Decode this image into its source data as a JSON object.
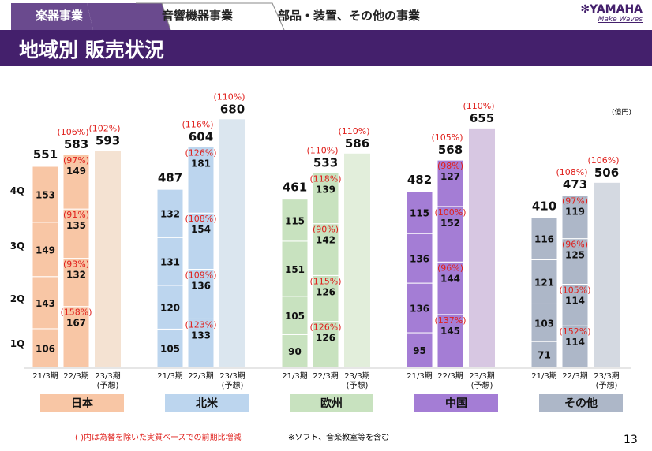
{
  "tabs": [
    {
      "label": "楽器事業",
      "active": true
    },
    {
      "label": "音響機器事業"
    },
    {
      "label": "部品・装置、その他の事業"
    }
  ],
  "logo": {
    "brand": "YAMAHA",
    "tagline": "Make Waves"
  },
  "title": "地域別 販売状況",
  "unit": "(億円)",
  "footnote_left": "( )内は為替を除いた実質ベースでの前期比増減",
  "footnote_right": "※ソフト、音楽教室等を含む",
  "page_number": "13",
  "chart_data": {
    "type": "bar",
    "title": "地域別 販売状況",
    "unit": "億円",
    "quarter_labels": [
      "1Q",
      "2Q",
      "3Q",
      "4Q"
    ],
    "period_labels": [
      "21/3期",
      "22/3期",
      "23/3期"
    ],
    "forecast_label": "(予想)",
    "regions": [
      {
        "name": "日本",
        "color": "#f8c6a5",
        "light": "#f4e2d2",
        "fy21": {
          "quarters": [
            106,
            143,
            149,
            153
          ],
          "total": 551
        },
        "fy22": {
          "quarters": [
            167,
            132,
            135,
            149
          ],
          "pcts": [
            "(158%)",
            "(93%)",
            "(91%)",
            "(97%)"
          ],
          "total": 583,
          "total_pct": "(106%)"
        },
        "fy23": {
          "total": 593,
          "total_pct": "(102%)"
        }
      },
      {
        "name": "北米",
        "color": "#bcd5ee",
        "light": "#dbe6ef",
        "fy21": {
          "quarters": [
            105,
            120,
            131,
            132
          ],
          "total": 487
        },
        "fy22": {
          "quarters": [
            133,
            136,
            154,
            181
          ],
          "pcts": [
            "(123%)",
            "(109%)",
            "(108%)",
            "(126%)"
          ],
          "total": 604,
          "total_pct": "(116%)"
        },
        "fy23": {
          "total": 680,
          "total_pct": "(110%)"
        }
      },
      {
        "name": "欧州",
        "color": "#c8e2bf",
        "light": "#e2eedb",
        "fy21": {
          "quarters": [
            90,
            105,
            151,
            115
          ],
          "total": 461
        },
        "fy22": {
          "quarters": [
            126,
            126,
            142,
            139
          ],
          "pcts": [
            "(126%)",
            "(115%)",
            "(90%)",
            "(118%)"
          ],
          "total": 533,
          "total_pct": "(110%)"
        },
        "fy23": {
          "total": 586,
          "total_pct": "(110%)"
        }
      },
      {
        "name": "中国",
        "color": "#a47dd5",
        "light": "#d7c7e2",
        "fy21": {
          "quarters": [
            95,
            136,
            136,
            115
          ],
          "total": 482
        },
        "fy22": {
          "quarters": [
            145,
            144,
            152,
            127
          ],
          "pcts": [
            "(137%)",
            "(96%)",
            "(100%)",
            "(98%)"
          ],
          "total": 568,
          "total_pct": "(105%)"
        },
        "fy23": {
          "total": 655,
          "total_pct": "(110%)"
        }
      },
      {
        "name": "その他",
        "color": "#adb7c8",
        "light": "#d4d9e1",
        "fy21": {
          "quarters": [
            71,
            103,
            121,
            116
          ],
          "total": 410
        },
        "fy22": {
          "quarters": [
            114,
            114,
            125,
            119
          ],
          "pcts": [
            "(152%)",
            "(105%)",
            "(96%)",
            "(97%)"
          ],
          "total": 473,
          "total_pct": "(108%)"
        },
        "fy23": {
          "total": 506,
          "total_pct": "(106%)"
        }
      }
    ],
    "colors": {
      "accent": "#44206c",
      "pct": "#e0201c"
    }
  }
}
